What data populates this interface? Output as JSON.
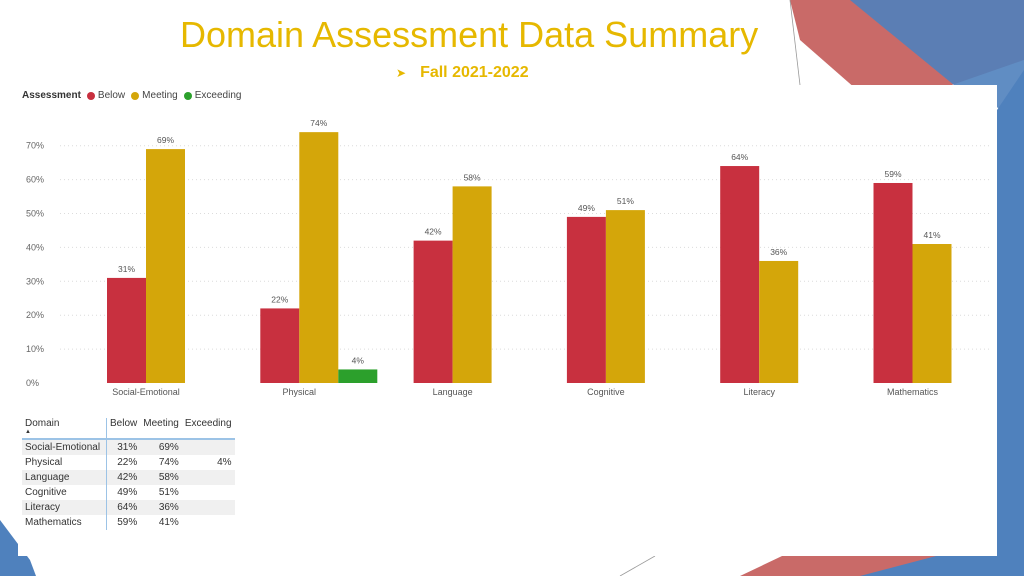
{
  "slide": {
    "title": "Domain Assessment Data Summary",
    "subtitle": "Fall 2021-2022",
    "bullet_icon": "arrow-bullet-icon"
  },
  "colors": {
    "below": "#c8303f",
    "meeting": "#d4a60a",
    "exceeding": "#2ca02c",
    "title": "#e6b800",
    "deco_red": "#c0504d",
    "deco_blue": "#4f81bd"
  },
  "legend": {
    "title": "Assessment",
    "items": [
      "Below",
      "Meeting",
      "Exceeding"
    ]
  },
  "chart_data": {
    "type": "bar",
    "title": "",
    "xlabel": "",
    "ylabel": "",
    "ylim": [
      0,
      74
    ],
    "yticks": [
      "0%",
      "10%",
      "20%",
      "30%",
      "40%",
      "50%",
      "60%",
      "70%"
    ],
    "ytick_values": [
      0,
      10,
      20,
      30,
      40,
      50,
      60,
      70
    ],
    "categories": [
      "Social-Emotional",
      "Physical",
      "Language",
      "Cognitive",
      "Literacy",
      "Mathematics"
    ],
    "series": [
      {
        "name": "Below",
        "values": [
          31,
          22,
          42,
          49,
          64,
          59
        ],
        "labels": [
          "31%",
          "22%",
          "42%",
          "49%",
          "64%",
          "59%"
        ]
      },
      {
        "name": "Meeting",
        "values": [
          69,
          74,
          58,
          51,
          36,
          41
        ],
        "labels": [
          "69%",
          "74%",
          "58%",
          "51%",
          "36%",
          "41%"
        ]
      },
      {
        "name": "Exceeding",
        "values": [
          null,
          4,
          null,
          null,
          null,
          null
        ],
        "labels": [
          "",
          "4%",
          "",
          "",
          "",
          ""
        ]
      }
    ]
  },
  "table": {
    "headers": {
      "domain": "Domain",
      "below": "Below",
      "meeting": "Meeting",
      "exceeding": "Exceeding"
    },
    "rows": [
      {
        "domain": "Social-Emotional",
        "below": "31%",
        "meeting": "69%",
        "exceeding": ""
      },
      {
        "domain": "Physical",
        "below": "22%",
        "meeting": "74%",
        "exceeding": "4%"
      },
      {
        "domain": "Language",
        "below": "42%",
        "meeting": "58%",
        "exceeding": ""
      },
      {
        "domain": "Cognitive",
        "below": "49%",
        "meeting": "51%",
        "exceeding": ""
      },
      {
        "domain": "Literacy",
        "below": "64%",
        "meeting": "36%",
        "exceeding": ""
      },
      {
        "domain": "Mathematics",
        "below": "59%",
        "meeting": "41%",
        "exceeding": ""
      }
    ]
  }
}
